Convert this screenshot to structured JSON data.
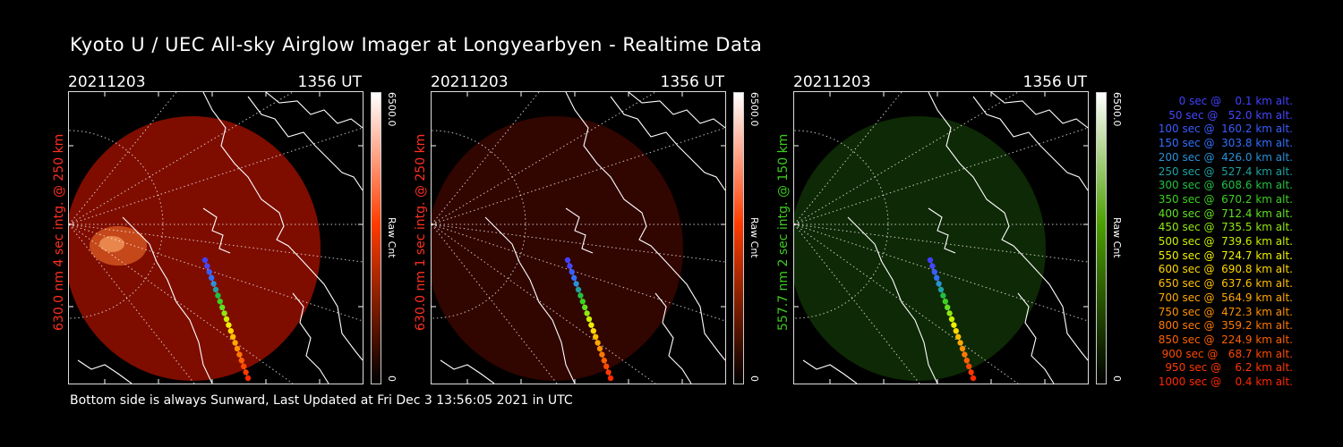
{
  "title": "Kyoto U / UEC All-sky Airglow Imager at Longyearbyen - Realtime Data",
  "footer": "Bottom side is always Sunward, Last Updated at Fri Dec  3 13:56:05 2021 in UTC",
  "panels": [
    {
      "date": "20211203",
      "time": "1356 UT",
      "side_label": "630.0 nm 4 sec intg. @ 250 km",
      "side_color": "#ff3020",
      "colorbar_max": "6500.0",
      "colorbar_min": "0",
      "colorbar_unit": "Raw Cnt",
      "colorbar_color": "#ff3c00",
      "image_color": "#cc1500",
      "image_opacity": 0.62,
      "brightness": "high"
    },
    {
      "date": "20211203",
      "time": "1356 UT",
      "side_label": "630.0 nm 1 sec intg. @ 250 km",
      "side_color": "#ff3020",
      "colorbar_max": "6500.0",
      "colorbar_min": "0",
      "colorbar_unit": "Raw Cnt",
      "colorbar_color": "#ff3c00",
      "image_color": "#7a0c00",
      "image_opacity": 0.4,
      "brightness": "low"
    },
    {
      "date": "20211203",
      "time": "1356 UT",
      "side_label": "557.7 nm 2 sec intg. @ 150 km",
      "side_color": "#3ccc1e",
      "colorbar_max": "6500.0",
      "colorbar_min": "0",
      "colorbar_unit": "Raw Cnt",
      "colorbar_color": "#4ca000",
      "image_color": "#1a4a0a",
      "image_opacity": 0.55,
      "brightness": "low"
    }
  ],
  "legend": [
    {
      "text": "   0 sec @    0.1 km alt.",
      "color": "#4040ff"
    },
    {
      "text": "  50 sec @   52.0 km alt.",
      "color": "#4646ff"
    },
    {
      "text": " 100 sec @  160.2 km alt.",
      "color": "#3a5cff"
    },
    {
      "text": " 150 sec @  303.8 km alt.",
      "color": "#3070ff"
    },
    {
      "text": " 200 sec @  426.0 km alt.",
      "color": "#2a90d8"
    },
    {
      "text": " 250 sec @  527.4 km alt.",
      "color": "#20a0a0"
    },
    {
      "text": " 300 sec @  608.6 km alt.",
      "color": "#20c040"
    },
    {
      "text": " 350 sec @  670.2 km alt.",
      "color": "#3cd020"
    },
    {
      "text": " 400 sec @  712.4 km alt.",
      "color": "#60e020"
    },
    {
      "text": " 450 sec @  735.5 km alt.",
      "color": "#90e810"
    },
    {
      "text": " 500 sec @  739.6 km alt.",
      "color": "#c8f000"
    },
    {
      "text": " 550 sec @  724.7 km alt.",
      "color": "#f0f000"
    },
    {
      "text": " 600 sec @  690.8 km alt.",
      "color": "#ffd800"
    },
    {
      "text": " 650 sec @  637.6 km alt.",
      "color": "#ffc000"
    },
    {
      "text": " 700 sec @  564.9 km alt.",
      "color": "#ffa800"
    },
    {
      "text": " 750 sec @  472.3 km alt.",
      "color": "#ff9000"
    },
    {
      "text": " 800 sec @  359.2 km alt.",
      "color": "#ff7800"
    },
    {
      "text": " 850 sec @  224.9 km alt.",
      "color": "#ff6000"
    },
    {
      "text": " 900 sec @   68.7 km alt.",
      "color": "#ff4800"
    },
    {
      "text": " 950 sec @    6.2 km alt.",
      "color": "#ff3800"
    },
    {
      "text": "1000 sec @    0.4 km alt.",
      "color": "#ff2800"
    }
  ],
  "chart_data": {
    "type": "scatter",
    "title": "Kyoto U / UEC All-sky Airglow Imager at Longyearbyen - Realtime Data",
    "x": [
      0,
      50,
      100,
      150,
      200,
      250,
      300,
      350,
      400,
      450,
      500,
      550,
      600,
      650,
      700,
      750,
      800,
      850,
      900,
      950,
      1000
    ],
    "series": [
      {
        "values": [
          0.1,
          52.0,
          160.2,
          303.8,
          426.0,
          527.4,
          608.6,
          670.2,
          712.4,
          735.5,
          739.6,
          724.7,
          690.8,
          637.6,
          564.9,
          472.3,
          359.2,
          224.9,
          68.7,
          6.2,
          0.4
        ]
      }
    ],
    "xlabel": "",
    "ylabel": ""
  }
}
